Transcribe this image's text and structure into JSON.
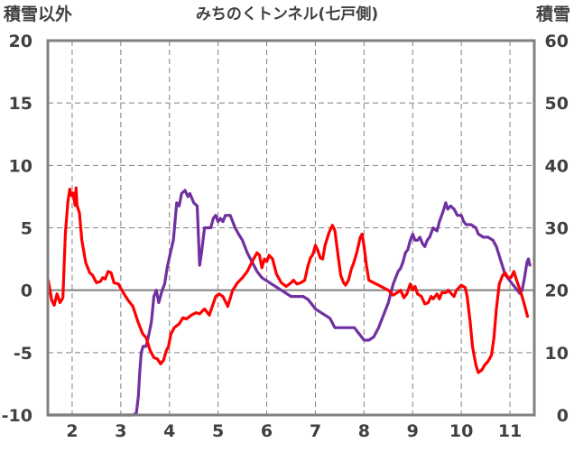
{
  "chart_data": {
    "type": "line",
    "title": "みちのくトンネル(七戸側)",
    "left_axis_label": "積雪以外",
    "right_axis_label": "積雪",
    "grid": true,
    "x_ticks": [
      2,
      3,
      4,
      5,
      6,
      7,
      8,
      9,
      10,
      11
    ],
    "xlim": [
      1.5,
      11.5
    ],
    "y_left": {
      "ticks": [
        20,
        15,
        10,
        5,
        0,
        -5,
        -10
      ],
      "ylim": [
        -10,
        20
      ]
    },
    "y_right": {
      "ticks": [
        60,
        50,
        40,
        30,
        20,
        10,
        0
      ],
      "ylim": [
        0,
        60
      ]
    },
    "colors": {
      "red_series": "#ff0000",
      "purple_series": "#7030a0",
      "axis": "#808080",
      "grid": "#808080",
      "zero_line": "#808080"
    },
    "series": [
      {
        "axis": "left",
        "color": "#ff0000",
        "points": [
          [
            1.51,
            0.8
          ],
          [
            1.58,
            -0.8
          ],
          [
            1.63,
            -1.2
          ],
          [
            1.69,
            -0.3
          ],
          [
            1.75,
            -1.0
          ],
          [
            1.81,
            -0.6
          ],
          [
            1.86,
            4.5
          ],
          [
            1.91,
            7.0
          ],
          [
            1.95,
            8.1
          ],
          [
            1.98,
            7.6
          ],
          [
            2.02,
            7.8
          ],
          [
            2.06,
            6.8
          ],
          [
            2.08,
            8.2
          ],
          [
            2.1,
            6.8
          ],
          [
            2.15,
            6.2
          ],
          [
            2.2,
            4.0
          ],
          [
            2.28,
            2.2
          ],
          [
            2.36,
            1.4
          ],
          [
            2.42,
            1.2
          ],
          [
            2.5,
            0.6
          ],
          [
            2.58,
            0.7
          ],
          [
            2.63,
            1.0
          ],
          [
            2.68,
            0.9
          ],
          [
            2.74,
            1.5
          ],
          [
            2.8,
            1.4
          ],
          [
            2.86,
            0.6
          ],
          [
            2.95,
            0.5
          ],
          [
            3.05,
            -0.2
          ],
          [
            3.15,
            -0.8
          ],
          [
            3.25,
            -1.3
          ],
          [
            3.35,
            -2.5
          ],
          [
            3.45,
            -3.5
          ],
          [
            3.52,
            -3.8
          ],
          [
            3.6,
            -4.8
          ],
          [
            3.68,
            -5.4
          ],
          [
            3.75,
            -5.5
          ],
          [
            3.82,
            -5.9
          ],
          [
            3.88,
            -5.6
          ],
          [
            3.93,
            -4.9
          ],
          [
            3.98,
            -4.5
          ],
          [
            4.03,
            -3.5
          ],
          [
            4.1,
            -3.0
          ],
          [
            4.2,
            -2.7
          ],
          [
            4.28,
            -2.2
          ],
          [
            4.35,
            -2.3
          ],
          [
            4.45,
            -2.0
          ],
          [
            4.55,
            -1.8
          ],
          [
            4.62,
            -1.9
          ],
          [
            4.72,
            -1.5
          ],
          [
            4.82,
            -2.0
          ],
          [
            4.88,
            -1.3
          ],
          [
            4.95,
            -0.5
          ],
          [
            5.02,
            -0.3
          ],
          [
            5.1,
            -0.5
          ],
          [
            5.2,
            -1.3
          ],
          [
            5.3,
            0.0
          ],
          [
            5.4,
            0.6
          ],
          [
            5.5,
            1.0
          ],
          [
            5.6,
            1.5
          ],
          [
            5.7,
            2.3
          ],
          [
            5.8,
            3.0
          ],
          [
            5.85,
            2.8
          ],
          [
            5.9,
            1.8
          ],
          [
            5.95,
            2.5
          ],
          [
            6.0,
            2.3
          ],
          [
            6.05,
            2.8
          ],
          [
            6.12,
            2.5
          ],
          [
            6.2,
            1.3
          ],
          [
            6.3,
            0.6
          ],
          [
            6.4,
            0.3
          ],
          [
            6.5,
            0.6
          ],
          [
            6.55,
            0.8
          ],
          [
            6.62,
            0.5
          ],
          [
            6.7,
            0.6
          ],
          [
            6.78,
            0.8
          ],
          [
            6.85,
            2.0
          ],
          [
            6.9,
            2.6
          ],
          [
            6.95,
            2.9
          ],
          [
            7.0,
            3.6
          ],
          [
            7.05,
            3.2
          ],
          [
            7.1,
            2.6
          ],
          [
            7.15,
            2.5
          ],
          [
            7.2,
            3.6
          ],
          [
            7.28,
            4.6
          ],
          [
            7.35,
            5.2
          ],
          [
            7.4,
            4.8
          ],
          [
            7.46,
            3.0
          ],
          [
            7.52,
            1.2
          ],
          [
            7.58,
            0.6
          ],
          [
            7.62,
            0.4
          ],
          [
            7.68,
            0.8
          ],
          [
            7.74,
            1.7
          ],
          [
            7.78,
            2.1
          ],
          [
            7.85,
            3.0
          ],
          [
            7.92,
            4.2
          ],
          [
            7.96,
            4.5
          ],
          [
            8.0,
            3.5
          ],
          [
            8.05,
            2.0
          ],
          [
            8.1,
            0.8
          ],
          [
            8.2,
            0.6
          ],
          [
            8.3,
            0.4
          ],
          [
            8.4,
            0.2
          ],
          [
            8.5,
            0.0
          ],
          [
            8.6,
            -0.4
          ],
          [
            8.68,
            -0.2
          ],
          [
            8.75,
            0.0
          ],
          [
            8.82,
            -0.6
          ],
          [
            8.88,
            -0.3
          ],
          [
            8.95,
            0.5
          ],
          [
            9.0,
            0.0
          ],
          [
            9.05,
            0.3
          ],
          [
            9.1,
            -0.3
          ],
          [
            9.18,
            -0.5
          ],
          [
            9.25,
            -1.1
          ],
          [
            9.32,
            -1.0
          ],
          [
            9.38,
            -0.5
          ],
          [
            9.42,
            -0.7
          ],
          [
            9.5,
            -0.3
          ],
          [
            9.55,
            -0.7
          ],
          [
            9.6,
            -0.2
          ],
          [
            9.68,
            -0.2
          ],
          [
            9.73,
            0.0
          ],
          [
            9.8,
            -0.3
          ],
          [
            9.85,
            -0.5
          ],
          [
            9.9,
            0.0
          ],
          [
            9.95,
            0.2
          ],
          [
            10.0,
            0.4
          ],
          [
            10.08,
            0.2
          ],
          [
            10.12,
            -0.5
          ],
          [
            10.18,
            -2.5
          ],
          [
            10.23,
            -4.5
          ],
          [
            10.3,
            -6.0
          ],
          [
            10.35,
            -6.6
          ],
          [
            10.42,
            -6.4
          ],
          [
            10.48,
            -6.0
          ],
          [
            10.55,
            -5.7
          ],
          [
            10.62,
            -5.2
          ],
          [
            10.67,
            -3.8
          ],
          [
            10.72,
            -1.5
          ],
          [
            10.78,
            0.5
          ],
          [
            10.85,
            1.2
          ],
          [
            10.9,
            1.4
          ],
          [
            10.96,
            1.0
          ],
          [
            11.02,
            1.0
          ],
          [
            11.08,
            1.5
          ],
          [
            11.12,
            1.0
          ],
          [
            11.18,
            0.3
          ],
          [
            11.25,
            -0.5
          ],
          [
            11.3,
            -1.2
          ],
          [
            11.36,
            -2.1
          ]
        ]
      },
      {
        "axis": "right",
        "color": "#7030a0",
        "points": [
          [
            1.51,
            0
          ],
          [
            2.0,
            0
          ],
          [
            2.5,
            0
          ],
          [
            3.0,
            0
          ],
          [
            3.25,
            0
          ],
          [
            3.32,
            0.3
          ],
          [
            3.36,
            3
          ],
          [
            3.39,
            7
          ],
          [
            3.42,
            10
          ],
          [
            3.46,
            11
          ],
          [
            3.52,
            11
          ],
          [
            3.58,
            13
          ],
          [
            3.63,
            15
          ],
          [
            3.68,
            19
          ],
          [
            3.73,
            20
          ],
          [
            3.78,
            18
          ],
          [
            3.85,
            20
          ],
          [
            3.9,
            21
          ],
          [
            3.95,
            23.5
          ],
          [
            4.02,
            26
          ],
          [
            4.08,
            28
          ],
          [
            4.15,
            34
          ],
          [
            4.2,
            33.5
          ],
          [
            4.25,
            35.5
          ],
          [
            4.32,
            36
          ],
          [
            4.38,
            35
          ],
          [
            4.42,
            35.5
          ],
          [
            4.5,
            34
          ],
          [
            4.57,
            33.5
          ],
          [
            4.62,
            24
          ],
          [
            4.66,
            26
          ],
          [
            4.72,
            30
          ],
          [
            4.78,
            30
          ],
          [
            4.85,
            30
          ],
          [
            4.9,
            31.5
          ],
          [
            4.95,
            32
          ],
          [
            5.0,
            31
          ],
          [
            5.05,
            31.5
          ],
          [
            5.1,
            31
          ],
          [
            5.15,
            32
          ],
          [
            5.25,
            32
          ],
          [
            5.3,
            31
          ],
          [
            5.35,
            30
          ],
          [
            5.42,
            29
          ],
          [
            5.5,
            28
          ],
          [
            5.6,
            26
          ],
          [
            5.7,
            24.5
          ],
          [
            5.8,
            23
          ],
          [
            5.9,
            22
          ],
          [
            6.0,
            21.5
          ],
          [
            6.1,
            21
          ],
          [
            6.2,
            20.5
          ],
          [
            6.3,
            20
          ],
          [
            6.4,
            19.5
          ],
          [
            6.5,
            19
          ],
          [
            6.6,
            19
          ],
          [
            6.75,
            19
          ],
          [
            6.85,
            18.5
          ],
          [
            7.0,
            17
          ],
          [
            7.1,
            16.5
          ],
          [
            7.2,
            16
          ],
          [
            7.3,
            15.5
          ],
          [
            7.4,
            14
          ],
          [
            7.5,
            14
          ],
          [
            7.65,
            14
          ],
          [
            7.8,
            14
          ],
          [
            7.9,
            13
          ],
          [
            8.0,
            12
          ],
          [
            8.1,
            12
          ],
          [
            8.2,
            12.5
          ],
          [
            8.3,
            14
          ],
          [
            8.4,
            16
          ],
          [
            8.5,
            18
          ],
          [
            8.55,
            19.5
          ],
          [
            8.6,
            21
          ],
          [
            8.65,
            22
          ],
          [
            8.7,
            23
          ],
          [
            8.75,
            23.5
          ],
          [
            8.8,
            24.5
          ],
          [
            8.85,
            26
          ],
          [
            8.9,
            26.5
          ],
          [
            8.95,
            28
          ],
          [
            9.0,
            29
          ],
          [
            9.05,
            28
          ],
          [
            9.1,
            28
          ],
          [
            9.15,
            28.5
          ],
          [
            9.2,
            27.5
          ],
          [
            9.25,
            27
          ],
          [
            9.3,
            28
          ],
          [
            9.35,
            28.5
          ],
          [
            9.42,
            30
          ],
          [
            9.5,
            29.5
          ],
          [
            9.55,
            31
          ],
          [
            9.62,
            32.5
          ],
          [
            9.68,
            34
          ],
          [
            9.72,
            33
          ],
          [
            9.78,
            33.5
          ],
          [
            9.85,
            33
          ],
          [
            9.92,
            32
          ],
          [
            10.0,
            32
          ],
          [
            10.05,
            31
          ],
          [
            10.1,
            30.5
          ],
          [
            10.2,
            30.5
          ],
          [
            10.3,
            30
          ],
          [
            10.35,
            29
          ],
          [
            10.45,
            28.5
          ],
          [
            10.55,
            28.5
          ],
          [
            10.65,
            28
          ],
          [
            10.72,
            27
          ],
          [
            10.8,
            25
          ],
          [
            10.9,
            22.5
          ],
          [
            11.0,
            21.5
          ],
          [
            11.1,
            20.5
          ],
          [
            11.15,
            20
          ],
          [
            11.2,
            19.5
          ],
          [
            11.25,
            20
          ],
          [
            11.3,
            22
          ],
          [
            11.35,
            24.5
          ],
          [
            11.38,
            25
          ],
          [
            11.41,
            24
          ]
        ]
      }
    ]
  }
}
